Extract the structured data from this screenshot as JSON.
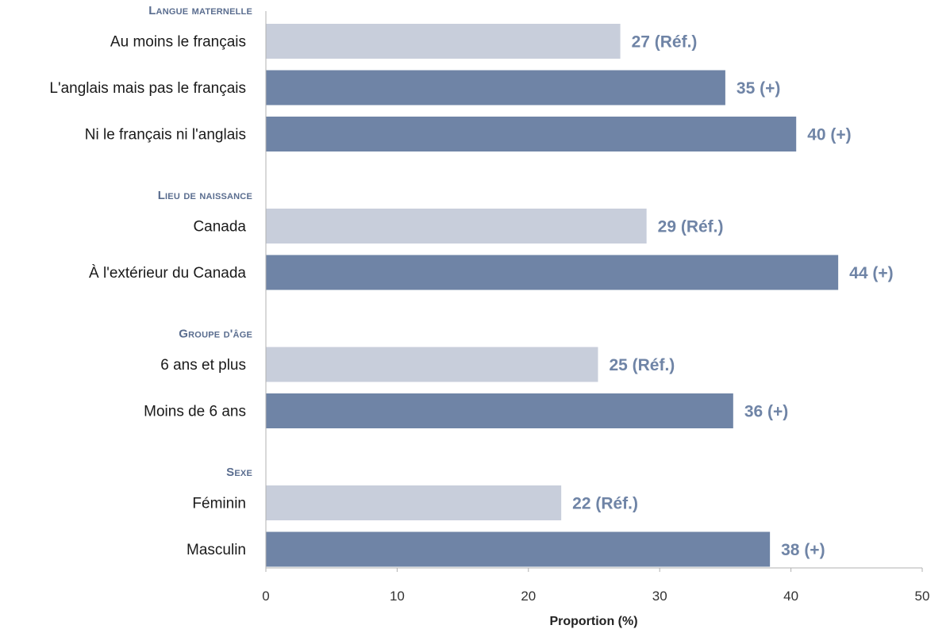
{
  "chart_data": {
    "type": "bar",
    "orientation": "horizontal",
    "xlabel": "Proportion (%)",
    "xlim": [
      0,
      50
    ],
    "xticks": [
      0,
      10,
      20,
      30,
      40,
      50
    ],
    "grid": false,
    "colors": {
      "reference": "#c8cedb",
      "comparison": "#6f84a6",
      "group_label": "#5a6d8f",
      "value_label": "#6f84a6"
    },
    "groups": [
      {
        "name": "Langue maternelle",
        "bars": [
          {
            "category": "Au moins le français",
            "value": 27,
            "label": "27 (Réf.)",
            "kind": "reference"
          },
          {
            "category": "L'anglais mais pas le français",
            "value": 35,
            "label": "35 (+)",
            "kind": "comparison"
          },
          {
            "category": "Ni le français ni l'anglais",
            "value": 40.4,
            "label": "40 (+)",
            "kind": "comparison"
          }
        ]
      },
      {
        "name": "Lieu de naissance",
        "bars": [
          {
            "category": "Canada",
            "value": 29,
            "label": "29 (Réf.)",
            "kind": "reference"
          },
          {
            "category": "À l'extérieur du Canada",
            "value": 43.6,
            "label": "44 (+)",
            "kind": "comparison"
          }
        ]
      },
      {
        "name": "Groupe d'âge",
        "bars": [
          {
            "category": "6 ans et plus",
            "value": 25.3,
            "label": "25 (Réf.)",
            "kind": "reference"
          },
          {
            "category": "Moins de 6 ans",
            "value": 35.6,
            "label": "36 (+)",
            "kind": "comparison"
          }
        ]
      },
      {
        "name": "Sexe",
        "bars": [
          {
            "category": "Féminin",
            "value": 22.5,
            "label": "22 (Réf.)",
            "kind": "reference"
          },
          {
            "category": "Masculin",
            "value": 38.4,
            "label": "38 (+)",
            "kind": "comparison"
          }
        ]
      }
    ]
  }
}
